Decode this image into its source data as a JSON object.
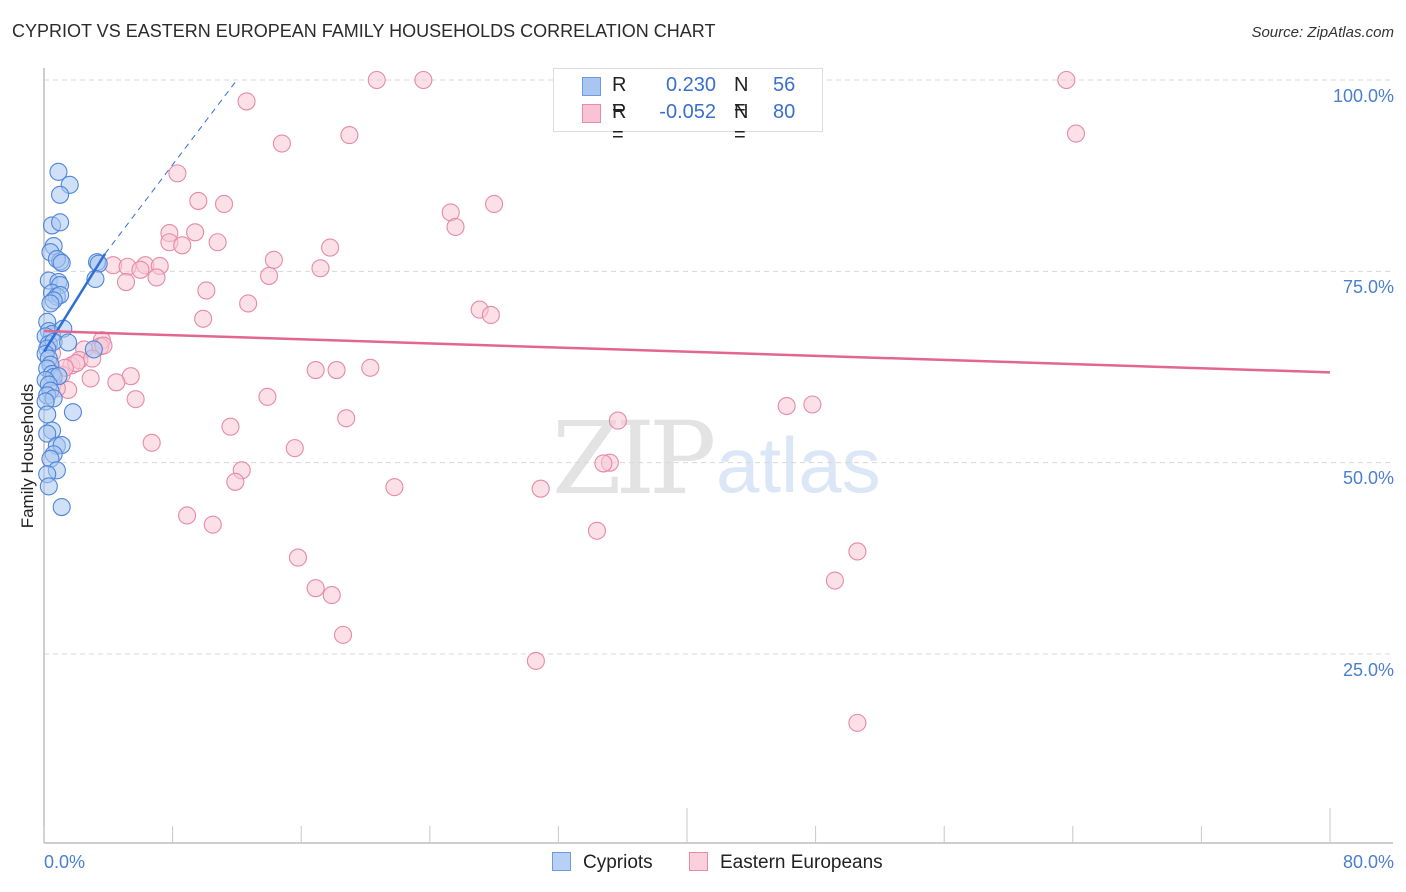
{
  "header": {
    "title": "CYPRIOT VS EASTERN EUROPEAN FAMILY HOUSEHOLDS CORRELATION CHART",
    "source": "Source: ZipAtlas.com"
  },
  "legend": {
    "rows": [
      {
        "r_label": "R =",
        "r_value": "0.230",
        "n_label": "N =",
        "n_value": "56",
        "color": "#a9c6f0",
        "border": "#6d9be0"
      },
      {
        "r_label": "R =",
        "r_value": "-0.052",
        "n_label": "N =",
        "n_value": "80",
        "color": "#f8c3d4",
        "border": "#e88aa8"
      }
    ]
  },
  "bottom_legend": [
    {
      "label": "Cypriots",
      "color": "#b7d0f3",
      "border": "#6d9be0"
    },
    {
      "label": "Eastern Europeans",
      "color": "#fbcfdc",
      "border": "#e88aa8"
    }
  ],
  "axes": {
    "y_label": "Family Households",
    "y_ticks": [
      "100.0%",
      "75.0%",
      "50.0%",
      "25.0%"
    ],
    "x_ticks": [
      "0.0%",
      "80.0%"
    ]
  },
  "watermark": {
    "zip": "ZIP",
    "atlas": "atlas"
  },
  "colors": {
    "cypriots_fill": "#a9c6f0",
    "cypriots_stroke": "#4f86d9",
    "cypriots_line": "#2f6fd6",
    "eastern_fill": "#f8c7d6",
    "eastern_stroke": "#e68aa8",
    "eastern_line": "#e26592",
    "tick_text": "#4a7fd0",
    "grid": "#d8d8d8"
  },
  "chart_data": {
    "type": "scatter",
    "title": "CYPRIOT VS EASTERN EUROPEAN FAMILY HOUSEHOLDS CORRELATION CHART",
    "xlabel": "",
    "ylabel": "Family Households",
    "xlim": [
      0,
      80
    ],
    "ylim": [
      0,
      102
    ],
    "x_tick_labels": [
      "0.0%",
      "80.0%"
    ],
    "y_tick_labels": [
      "25.0%",
      "50.0%",
      "75.0%",
      "100.0%"
    ],
    "grid": true,
    "legend_position": "top-center",
    "series": [
      {
        "name": "Cypriots",
        "R": 0.23,
        "N": 56,
        "trend": {
          "x0": 0,
          "y0": 64.5,
          "x1": 3.8,
          "y1": 77.3,
          "dashed_extension_to": {
            "x": 12,
            "y": 100
          }
        },
        "points": [
          [
            0.9,
            88
          ],
          [
            1.6,
            86.3
          ],
          [
            1.0,
            85
          ],
          [
            0.5,
            81
          ],
          [
            1.0,
            81.4
          ],
          [
            0.6,
            78.3
          ],
          [
            0.4,
            77.5
          ],
          [
            1.0,
            76.3
          ],
          [
            0.8,
            76.6
          ],
          [
            1.1,
            76.1
          ],
          [
            3.3,
            76.2
          ],
          [
            3.4,
            76.0
          ],
          [
            0.3,
            73.8
          ],
          [
            0.9,
            73.6
          ],
          [
            1.0,
            73.2
          ],
          [
            3.2,
            74
          ],
          [
            0.5,
            72.2
          ],
          [
            0.8,
            71.7
          ],
          [
            1.0,
            71.9
          ],
          [
            0.6,
            71.2
          ],
          [
            0.4,
            70.8
          ],
          [
            0.2,
            68.4
          ],
          [
            0.3,
            67.2
          ],
          [
            0.5,
            66.8
          ],
          [
            1.2,
            67.5
          ],
          [
            0.1,
            66.5
          ],
          [
            0.3,
            65.5
          ],
          [
            0.6,
            65.8
          ],
          [
            1.5,
            65.7
          ],
          [
            0.2,
            64.9
          ],
          [
            0.1,
            64.2
          ],
          [
            0.3,
            63.6
          ],
          [
            0.4,
            62.8
          ],
          [
            3.1,
            64.8
          ],
          [
            0.2,
            62.3
          ],
          [
            0.5,
            61.6
          ],
          [
            0.6,
            61.2
          ],
          [
            0.9,
            61.3
          ],
          [
            0.1,
            60.8
          ],
          [
            0.3,
            60.2
          ],
          [
            0.4,
            59.4
          ],
          [
            0.2,
            58.8
          ],
          [
            0.6,
            58.4
          ],
          [
            0.1,
            58.0
          ],
          [
            1.8,
            56.6
          ],
          [
            0.2,
            56.3
          ],
          [
            0.5,
            54.2
          ],
          [
            0.2,
            53.8
          ],
          [
            0.8,
            52.2
          ],
          [
            1.1,
            52.3
          ],
          [
            0.6,
            51.1
          ],
          [
            0.4,
            50.5
          ],
          [
            0.8,
            49.0
          ],
          [
            0.2,
            48.5
          ],
          [
            1.1,
            44.2
          ],
          [
            0.3,
            46.9
          ]
        ]
      },
      {
        "name": "Eastern Europeans",
        "R": -0.052,
        "N": 80,
        "trend": {
          "x0": 0,
          "y0": 67.2,
          "x1": 80,
          "y1": 61.8
        },
        "points": [
          [
            20.7,
            100
          ],
          [
            23.6,
            100
          ],
          [
            39.5,
            100
          ],
          [
            63.6,
            100
          ],
          [
            12.6,
            97.2
          ],
          [
            19.0,
            92.8
          ],
          [
            14.8,
            91.7
          ],
          [
            64.2,
            93
          ],
          [
            8.3,
            87.8
          ],
          [
            9.6,
            84.2
          ],
          [
            11.2,
            83.8
          ],
          [
            28.0,
            83.8
          ],
          [
            25.3,
            82.7
          ],
          [
            25.6,
            80.8
          ],
          [
            7.8,
            80.0
          ],
          [
            9.4,
            80.1
          ],
          [
            7.8,
            78.8
          ],
          [
            8.6,
            78.4
          ],
          [
            10.8,
            78.8
          ],
          [
            17.8,
            78.1
          ],
          [
            14.3,
            76.5
          ],
          [
            4.3,
            75.8
          ],
          [
            5.2,
            75.6
          ],
          [
            6.3,
            75.8
          ],
          [
            7.2,
            75.7
          ],
          [
            6.0,
            75.2
          ],
          [
            17.2,
            75.4
          ],
          [
            14.0,
            74.4
          ],
          [
            5.1,
            73.6
          ],
          [
            7.0,
            74.2
          ],
          [
            10.1,
            72.5
          ],
          [
            12.7,
            70.8
          ],
          [
            27.1,
            70.0
          ],
          [
            27.8,
            69.3
          ],
          [
            9.9,
            68.8
          ],
          [
            3.6,
            66.0
          ],
          [
            3.5,
            65.2
          ],
          [
            2.5,
            64.8
          ],
          [
            1.7,
            62.7
          ],
          [
            2.2,
            63.4
          ],
          [
            3.0,
            63.6
          ],
          [
            1.1,
            61.5
          ],
          [
            16.9,
            62.1
          ],
          [
            18.2,
            62.1
          ],
          [
            20.3,
            62.4
          ],
          [
            5.4,
            61.3
          ],
          [
            2.9,
            61.0
          ],
          [
            4.5,
            60.5
          ],
          [
            1.5,
            59.5
          ],
          [
            0.8,
            59.7
          ],
          [
            5.7,
            58.3
          ],
          [
            13.9,
            58.6
          ],
          [
            46.2,
            57.4
          ],
          [
            47.8,
            57.6
          ],
          [
            18.8,
            55.8
          ],
          [
            35.7,
            55.5
          ],
          [
            11.6,
            54.7
          ],
          [
            6.7,
            52.6
          ],
          [
            15.6,
            51.9
          ],
          [
            35.2,
            50.0
          ],
          [
            34.8,
            49.9
          ],
          [
            12.3,
            49.0
          ],
          [
            11.9,
            47.5
          ],
          [
            21.8,
            46.8
          ],
          [
            30.9,
            46.6
          ],
          [
            8.9,
            43.1
          ],
          [
            10.5,
            41.9
          ],
          [
            34.4,
            41.1
          ],
          [
            50.6,
            38.4
          ],
          [
            15.8,
            37.6
          ],
          [
            49.2,
            34.6
          ],
          [
            16.9,
            33.6
          ],
          [
            17.9,
            32.7
          ],
          [
            18.6,
            27.5
          ],
          [
            30.6,
            24.1
          ],
          [
            50.6,
            16.0
          ],
          [
            3.7,
            65.3
          ],
          [
            2.0,
            63.0
          ],
          [
            1.3,
            62.4
          ],
          [
            0.5,
            64.3
          ]
        ]
      }
    ]
  }
}
